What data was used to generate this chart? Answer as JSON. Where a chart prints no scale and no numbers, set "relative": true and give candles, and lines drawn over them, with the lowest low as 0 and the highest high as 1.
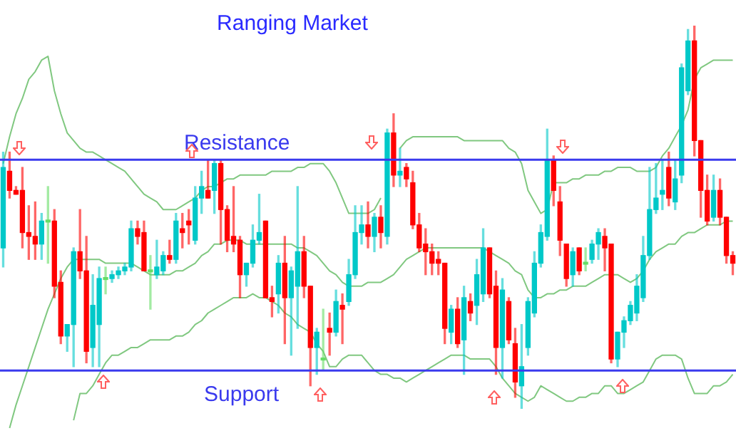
{
  "chart_data": {
    "type": "candlestick",
    "title": "Ranging Market",
    "relative": true,
    "categories": [
      null,
      null,
      null,
      null,
      null,
      null,
      null,
      null,
      null,
      null,
      null,
      null,
      null,
      null,
      null,
      null,
      null,
      null,
      null,
      null,
      null,
      null,
      null,
      null,
      null,
      null,
      null,
      null,
      null,
      null,
      null,
      null,
      null,
      null,
      null,
      null,
      null,
      null,
      null,
      null,
      null,
      null,
      null,
      null,
      null,
      null,
      null,
      null,
      null,
      null,
      null,
      null,
      null,
      null,
      null,
      null,
      null,
      null,
      null,
      null,
      null,
      null,
      null,
      null,
      null,
      null,
      null,
      null,
      null,
      null,
      null,
      null,
      null,
      null,
      null,
      null,
      null,
      null,
      null,
      null,
      null,
      null,
      null,
      null,
      null,
      null,
      null,
      null,
      null,
      null,
      null,
      null,
      null,
      null,
      null,
      null,
      null,
      null,
      null,
      null,
      null,
      null,
      null,
      null,
      null,
      null,
      null,
      null,
      null,
      null,
      null,
      null,
      null,
      null,
      null
    ],
    "ohlc": [
      [
        0.42,
        0.67,
        0.37,
        0.63
      ],
      [
        0.62,
        0.67,
        0.55,
        0.57
      ],
      [
        0.57,
        0.58,
        0.56,
        0.56
      ],
      [
        0.57,
        0.63,
        0.42,
        0.46
      ],
      [
        0.46,
        0.53,
        0.39,
        0.45
      ],
      [
        0.45,
        0.54,
        0.39,
        0.43
      ],
      [
        0.43,
        0.51,
        0.39,
        0.49
      ],
      [
        0.49,
        0.58,
        0.38,
        0.49
      ],
      [
        0.49,
        0.52,
        0.29,
        0.32
      ],
      [
        0.33,
        0.36,
        0.17,
        0.19
      ],
      [
        0.19,
        0.22,
        0.15,
        0.22
      ],
      [
        0.22,
        0.42,
        0.11,
        0.41
      ],
      [
        0.41,
        0.52,
        0.34,
        0.36
      ],
      [
        0.36,
        0.45,
        0.12,
        0.15
      ],
      [
        0.16,
        0.35,
        0.11,
        0.27
      ],
      [
        0.22,
        0.37,
        0.11,
        0.34
      ],
      [
        0.34,
        0.37,
        0.3,
        0.34
      ],
      [
        0.34,
        0.36,
        0.33,
        0.35
      ],
      [
        0.35,
        0.37,
        0.34,
        0.36
      ],
      [
        0.36,
        0.38,
        0.35,
        0.37
      ],
      [
        0.37,
        0.49,
        0.36,
        0.47
      ],
      [
        0.47,
        0.49,
        0.43,
        0.45
      ],
      [
        0.46,
        0.49,
        0.36,
        0.36
      ],
      [
        0.36,
        0.4,
        0.26,
        0.36
      ],
      [
        0.35,
        0.44,
        0.34,
        0.37
      ],
      [
        0.36,
        0.41,
        0.35,
        0.4
      ],
      [
        0.4,
        0.44,
        0.38,
        0.39
      ],
      [
        0.39,
        0.51,
        0.38,
        0.49
      ],
      [
        0.47,
        0.51,
        0.42,
        0.46
      ],
      [
        0.49,
        0.52,
        0.43,
        0.48
      ],
      [
        0.44,
        0.58,
        0.43,
        0.55
      ],
      [
        0.55,
        0.62,
        0.51,
        0.58
      ],
      [
        0.57,
        0.65,
        0.55,
        0.55
      ],
      [
        0.57,
        0.65,
        0.51,
        0.64
      ],
      [
        0.64,
        0.65,
        0.43,
        0.52
      ],
      [
        0.52,
        0.53,
        0.41,
        0.44
      ],
      [
        0.45,
        0.58,
        0.41,
        0.43
      ],
      [
        0.44,
        0.45,
        0.29,
        0.35
      ],
      [
        0.35,
        0.38,
        0.32,
        0.38
      ],
      [
        0.38,
        0.48,
        0.37,
        0.44
      ],
      [
        0.44,
        0.56,
        0.43,
        0.46
      ],
      [
        0.49,
        0.49,
        0.29,
        0.29
      ],
      [
        0.29,
        0.32,
        0.24,
        0.28
      ],
      [
        0.3,
        0.4,
        0.25,
        0.38
      ],
      [
        0.38,
        0.45,
        0.17,
        0.29
      ],
      [
        0.29,
        0.37,
        0.14,
        0.36
      ],
      [
        0.32,
        0.58,
        0.21,
        0.41
      ],
      [
        0.41,
        0.45,
        0.29,
        0.32
      ],
      [
        0.32,
        0.32,
        0.06,
        0.16
      ],
      [
        0.16,
        0.21,
        0.09,
        0.2
      ],
      [
        0.13,
        0.26,
        0.1,
        0.13
      ],
      [
        0.21,
        0.25,
        0.14,
        0.2
      ],
      [
        0.2,
        0.31,
        0.19,
        0.28
      ],
      [
        0.27,
        0.3,
        0.17,
        0.26
      ],
      [
        0.28,
        0.39,
        0.27,
        0.35
      ],
      [
        0.35,
        0.53,
        0.34,
        0.46
      ],
      [
        0.46,
        0.53,
        0.43,
        0.48
      ],
      [
        0.48,
        0.54,
        0.42,
        0.45
      ],
      [
        0.45,
        0.51,
        0.41,
        0.5
      ],
      [
        0.5,
        0.53,
        0.42,
        0.46
      ],
      [
        0.45,
        0.73,
        0.43,
        0.72
      ],
      [
        0.72,
        0.77,
        0.58,
        0.61
      ],
      [
        0.61,
        0.68,
        0.58,
        0.62
      ],
      [
        0.63,
        0.64,
        0.58,
        0.6
      ],
      [
        0.59,
        0.62,
        0.47,
        0.48
      ],
      [
        0.48,
        0.51,
        0.41,
        0.42
      ],
      [
        0.43,
        0.47,
        0.35,
        0.41
      ],
      [
        0.41,
        0.43,
        0.35,
        0.38
      ],
      [
        0.39,
        0.41,
        0.35,
        0.38
      ],
      [
        0.38,
        0.38,
        0.17,
        0.21
      ],
      [
        0.2,
        0.27,
        0.17,
        0.26
      ],
      [
        0.26,
        0.29,
        0.16,
        0.17
      ],
      [
        0.18,
        0.32,
        0.09,
        0.29
      ],
      [
        0.28,
        0.3,
        0.23,
        0.25
      ],
      [
        0.27,
        0.39,
        0.22,
        0.35
      ],
      [
        0.3,
        0.47,
        0.28,
        0.42
      ],
      [
        0.42,
        0.42,
        0.29,
        0.3
      ],
      [
        0.32,
        0.36,
        0.09,
        0.16
      ],
      [
        0.16,
        0.34,
        0.08,
        0.31
      ],
      [
        0.28,
        0.29,
        0.17,
        0.18
      ],
      [
        0.17,
        0.21,
        0.03,
        0.07
      ],
      [
        0.06,
        0.22,
        0,
        0.11
      ],
      [
        0.16,
        0.29,
        0.14,
        0.28
      ],
      [
        0.25,
        0.41,
        0.24,
        0.38
      ],
      [
        0.38,
        0.48,
        0.37,
        0.46
      ],
      [
        0.45,
        0.73,
        0.44,
        0.65
      ],
      [
        0.65,
        0.66,
        0.53,
        0.57
      ],
      [
        0.54,
        0.58,
        0.4,
        0.44
      ],
      [
        0.43,
        0.43,
        0.32,
        0.34
      ],
      [
        0.35,
        0.42,
        0.32,
        0.41
      ],
      [
        0.42,
        0.42,
        0.35,
        0.36
      ],
      [
        0.38,
        0.42,
        0.36,
        0.38
      ],
      [
        0.39,
        0.44,
        0.38,
        0.43
      ],
      [
        0.43,
        0.47,
        0.39,
        0.46
      ],
      [
        0.45,
        0.47,
        0.36,
        0.42
      ],
      [
        0.43,
        0.43,
        0.12,
        0.13
      ],
      [
        0.13,
        0.2,
        0.11,
        0.2
      ],
      [
        0.2,
        0.24,
        0.16,
        0.23
      ],
      [
        0.23,
        0.28,
        0.22,
        0.27
      ],
      [
        0.25,
        0.35,
        0.23,
        0.32
      ],
      [
        0.29,
        0.45,
        0.28,
        0.4
      ],
      [
        0.4,
        0.63,
        0.39,
        0.52
      ],
      [
        0.52,
        0.64,
        0.51,
        0.55
      ],
      [
        0.56,
        0.65,
        0.52,
        0.57
      ],
      [
        0.63,
        0.67,
        0.53,
        0.55
      ],
      [
        0.54,
        0.65,
        0.52,
        0.6
      ],
      [
        0.61,
        0.9,
        0.59,
        0.89
      ],
      [
        0.83,
        0.99,
        0.82,
        0.96
      ],
      [
        0.96,
        1,
        0.66,
        0.7
      ],
      [
        0.7,
        0.7,
        0.5,
        0.57
      ],
      [
        0.57,
        0.61,
        0.48,
        0.49
      ],
      [
        0.5,
        0.61,
        0.49,
        0.57
      ],
      [
        0.57,
        0.6,
        0.48,
        0.5
      ],
      [
        0.5,
        0.5,
        0.38,
        0.4
      ],
      [
        0.4,
        0.41,
        0.35,
        0.38
      ]
    ],
    "colors": [
      "#00c8c8",
      "#ff0000",
      "#ff0000",
      "#ff0000",
      "#ff0000",
      "#ff0000",
      "#00c8c8",
      "#66dd66",
      "#ff0000",
      "#ff0000",
      "#00c8c8",
      "#00c8c8",
      "#ff0000",
      "#ff0000",
      "#00c8c8",
      "#00c8c8",
      "#66dd66",
      "#00c8c8",
      "#00c8c8",
      "#00c8c8",
      "#00c8c8",
      "#ff0000",
      "#ff0000",
      "#66dd66",
      "#00c8c8",
      "#00c8c8",
      "#ff0000",
      "#00c8c8",
      "#ff0000",
      "#ff0000",
      "#00c8c8",
      "#00c8c8",
      "#ff0000",
      "#00c8c8",
      "#ff0000",
      "#ff0000",
      "#ff0000",
      "#ff0000",
      "#00c8c8",
      "#00c8c8",
      "#00c8c8",
      "#ff0000",
      "#ff0000",
      "#00c8c8",
      "#ff0000",
      "#00c8c8",
      "#00c8c8",
      "#ff0000",
      "#ff0000",
      "#00c8c8",
      "#66dd66",
      "#ff0000",
      "#00c8c8",
      "#ff0000",
      "#00c8c8",
      "#00c8c8",
      "#00c8c8",
      "#ff0000",
      "#00c8c8",
      "#ff0000",
      "#00c8c8",
      "#ff0000",
      "#00c8c8",
      "#ff0000",
      "#ff0000",
      "#ff0000",
      "#ff0000",
      "#ff0000",
      "#ff0000",
      "#ff0000",
      "#00c8c8",
      "#ff0000",
      "#00c8c8",
      "#ff0000",
      "#00c8c8",
      "#00c8c8",
      "#ff0000",
      "#ff0000",
      "#00c8c8",
      "#ff0000",
      "#ff0000",
      "#00c8c8",
      "#00c8c8",
      "#00c8c8",
      "#00c8c8",
      "#00c8c8",
      "#ff0000",
      "#ff0000",
      "#ff0000",
      "#00c8c8",
      "#ff0000",
      "#66dd66",
      "#00c8c8",
      "#00c8c8",
      "#ff0000",
      "#ff0000",
      "#00c8c8",
      "#00c8c8",
      "#00c8c8",
      "#00c8c8",
      "#00c8c8",
      "#00c8c8",
      "#00c8c8",
      "#00c8c8",
      "#ff0000",
      "#00c8c8",
      "#00c8c8",
      "#00c8c8",
      "#ff0000",
      "#ff0000",
      "#ff0000",
      "#00c8c8",
      "#ff0000",
      "#ff0000",
      "#ff0000"
    ],
    "series": [
      {
        "type": "line",
        "color": "#80c880",
        "values": [
          0.64,
          0.71,
          0.77,
          0.81,
          0.86,
          0.88,
          0.91,
          0.92,
          0.83,
          0.77,
          0.72,
          0.7,
          0.68,
          0.67,
          0.67,
          0.66,
          0.65,
          0.64,
          0.63,
          0.62,
          0.6,
          0.58,
          0.56,
          0.55,
          0.54,
          0.52,
          0.52,
          0.52,
          0.53,
          0.54,
          0.55,
          0.57,
          0.58,
          0.58,
          0.59,
          0.6,
          0.6,
          0.61,
          0.61,
          0.61,
          0.61,
          0.61,
          0.62,
          0.62,
          0.62,
          0.62,
          0.63,
          0.63,
          0.64,
          0.64,
          0.64,
          0.62,
          0.59,
          0.55,
          0.51,
          0.51,
          0.51,
          0.51,
          0.52,
          0.55,
          null,
          null,
          0.68,
          0.7,
          0.71,
          0.71,
          0.71,
          0.71,
          0.71,
          0.71,
          0.71,
          0.71,
          0.7,
          0.7,
          0.7,
          0.7,
          0.7,
          0.7,
          0.7,
          0.68,
          0.67,
          0.64,
          0.57,
          0.54,
          0.51,
          0.52,
          0.59,
          0.59,
          0.59,
          0.6,
          0.6,
          0.61,
          0.61,
          0.61,
          0.62,
          0.62,
          0.63,
          0.63,
          0.63,
          0.62,
          0.62,
          0.62,
          0.63,
          0.66,
          0.68,
          0.71,
          0.74,
          0.78,
          0.86,
          0.89,
          0.9,
          0.91,
          0.91,
          0.91,
          0.91
        ]
      },
      {
        "type": "line",
        "color": "#80c880",
        "values": [
          null,
          -0.05,
          0.01,
          0.06,
          0.11,
          0.16,
          0.21,
          0.26,
          0.3,
          0.34,
          0.37,
          0.39,
          0.39,
          0.39,
          0.39,
          0.39,
          0.38,
          0.38,
          0.38,
          0.38,
          0.38,
          0.37,
          0.36,
          0.35,
          0.35,
          0.35,
          0.35,
          0.36,
          0.36,
          0.37,
          0.38,
          0.4,
          0.41,
          0.43,
          0.43,
          0.44,
          0.44,
          0.44,
          0.43,
          0.43,
          0.43,
          0.43,
          0.43,
          0.43,
          0.43,
          0.43,
          0.42,
          0.42,
          0.41,
          0.4,
          0.38,
          0.36,
          0.35,
          0.33,
          0.32,
          0.32,
          0.32,
          0.33,
          0.33,
          0.33,
          0.34,
          0.35,
          0.37,
          0.39,
          0.4,
          0.41,
          0.42,
          0.42,
          0.42,
          0.42,
          0.42,
          0.42,
          0.42,
          0.42,
          0.42,
          0.42,
          0.41,
          0.4,
          0.39,
          0.38,
          0.36,
          0.35,
          0.31,
          0.29,
          0.29,
          0.3,
          0.3,
          0.31,
          0.31,
          0.32,
          0.32,
          0.32,
          0.33,
          0.34,
          0.35,
          0.35,
          0.35,
          0.34,
          0.33,
          0.34,
          0.36,
          0.39,
          0.41,
          0.42,
          0.43,
          0.43,
          0.45,
          0.46,
          0.46,
          0.47,
          0.48,
          0.48,
          0.48,
          0.49,
          0.49
        ]
      },
      {
        "type": "line",
        "color": "#80c880",
        "values": [
          null,
          null,
          null,
          null,
          null,
          null,
          null,
          null,
          null,
          null,
          null,
          -0.03,
          0.04,
          0.04,
          0.06,
          0.09,
          0.12,
          0.14,
          0.14,
          0.15,
          0.16,
          0.16,
          0.17,
          0.18,
          0.18,
          0.18,
          0.18,
          0.19,
          0.19,
          0.2,
          0.22,
          0.23,
          0.25,
          0.26,
          0.27,
          0.28,
          0.29,
          0.29,
          0.29,
          0.3,
          0.29,
          0.29,
          0.28,
          0.27,
          0.25,
          0.24,
          0.22,
          0.21,
          0.2,
          0.17,
          0.15,
          0.11,
          0.11,
          0.13,
          0.14,
          0.14,
          0.14,
          0.12,
          0.1,
          0.09,
          0.09,
          0.08,
          0.08,
          0.07,
          0.08,
          0.09,
          0.1,
          0.11,
          0.12,
          0.13,
          0.14,
          0.14,
          0.14,
          0.13,
          0.13,
          0.13,
          0.13,
          0.11,
          0.08,
          0.06,
          0.04,
          0.03,
          0.02,
          0.03,
          0.06,
          0.05,
          0.04,
          0.03,
          0.02,
          0.02,
          0.03,
          0.03,
          0.04,
          0.04,
          0.06,
          0.06,
          0.04,
          0.04,
          0.05,
          0.06,
          0.07,
          0.1,
          0.13,
          0.14,
          0.14,
          0.14,
          0.13,
          0.08,
          0.04,
          0.04,
          0.04,
          0.06,
          0.06,
          0.07,
          0.09
        ]
      }
    ],
    "ref_lines": [
      {
        "axis": "y",
        "value": 0.65,
        "label": "Resistance",
        "color": "#3a3aee"
      },
      {
        "axis": "y",
        "value": 0.1,
        "label": "Support",
        "color": "#3a3aee"
      }
    ]
  }
}
